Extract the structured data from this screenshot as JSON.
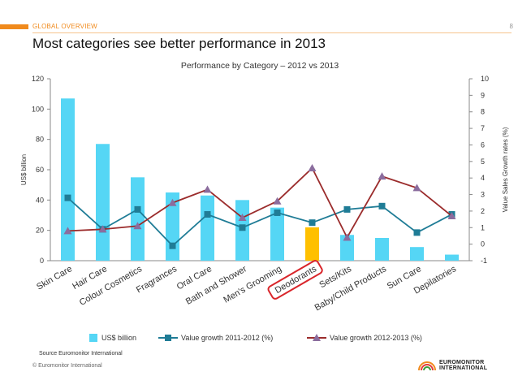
{
  "header": {
    "section": "GLOBAL OVERVIEW",
    "page_number": "8",
    "headline": "Most categories see better performance in 2013"
  },
  "footer": {
    "source": "Source Euromonitor International",
    "copyright": "© Euromonitor International",
    "logo_line1": "EUROMONITOR",
    "logo_line2": "INTERNATIONAL"
  },
  "chart_data": {
    "type": "bar",
    "title": "Performance by Category – 2012 vs 2013",
    "ylabel": "US$ billion",
    "y2label": "Value Sales Growth rates (%)",
    "ylim": [
      0,
      120
    ],
    "y2lim": [
      -1,
      10
    ],
    "yticks": [
      0,
      20,
      40,
      60,
      80,
      100,
      120
    ],
    "y2ticks": [
      -1,
      0,
      1,
      2,
      3,
      4,
      5,
      6,
      7,
      8,
      9,
      10
    ],
    "categories": [
      "Skin Care",
      "Hair Care",
      "Colour Cosmetics",
      "Fragrances",
      "Oral Care",
      "Bath and Shower",
      "Men's Grooming",
      "Deodorants",
      "Sets/Kits",
      "Baby/Child Products",
      "Sun Care",
      "Depilatories"
    ],
    "highlight_category": "Deodorants",
    "series": [
      {
        "name": "US$ billion",
        "kind": "bar",
        "axis": "left",
        "color": "#55d6f5",
        "highlight_color": "#ffc000",
        "values": [
          107,
          77,
          55,
          45,
          43,
          40,
          35,
          22,
          17,
          15,
          9,
          4
        ]
      },
      {
        "name": "Value growth 2011-2012 (%)",
        "kind": "line",
        "axis": "right",
        "color": "#1f7c96",
        "marker": "square",
        "values": [
          2.8,
          0.9,
          2.1,
          -0.1,
          1.8,
          1.0,
          1.9,
          1.3,
          2.1,
          2.3,
          0.7,
          1.8
        ]
      },
      {
        "name": "Value growth 2012-2013 (%)",
        "kind": "line",
        "axis": "right",
        "color": "#9b2c2c",
        "marker": "triangle",
        "marker_color": "#8b6d9e",
        "values": [
          0.8,
          0.9,
          1.1,
          2.5,
          3.3,
          1.6,
          2.6,
          4.6,
          0.4,
          4.1,
          3.4,
          1.7
        ]
      }
    ],
    "legend_placement": "bottom-center",
    "grid": false
  }
}
